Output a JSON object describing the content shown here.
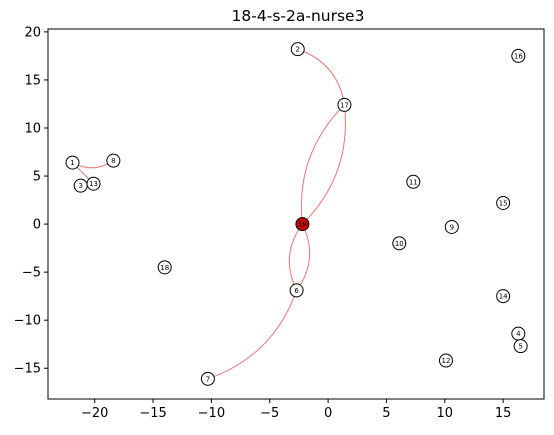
{
  "chart_data": {
    "type": "scatter",
    "title": "18-4-s-2a-nurse3",
    "xlabel": "",
    "ylabel": "",
    "xlim": [
      -24,
      18.5
    ],
    "ylim": [
      -18.2,
      20.3
    ],
    "xticks": [
      -20,
      -15,
      -10,
      -5,
      0,
      5,
      10,
      15
    ],
    "yticks": [
      -15,
      -10,
      -5,
      0,
      5,
      10,
      15,
      20
    ],
    "grid": false,
    "nodes": [
      {
        "id": "1",
        "x": -21.9,
        "y": 6.4
      },
      {
        "id": "2",
        "x": -2.6,
        "y": 18.2
      },
      {
        "id": "3",
        "x": -21.2,
        "y": 4.0
      },
      {
        "id": "4",
        "x": 16.3,
        "y": -11.4
      },
      {
        "id": "5",
        "x": 16.5,
        "y": -12.7
      },
      {
        "id": "6",
        "x": -2.7,
        "y": -6.9
      },
      {
        "id": "7",
        "x": -10.3,
        "y": -16.1
      },
      {
        "id": "8",
        "x": -18.4,
        "y": 6.6
      },
      {
        "id": "9",
        "x": 10.6,
        "y": -0.3
      },
      {
        "id": "10",
        "x": 6.1,
        "y": -2.0
      },
      {
        "id": "11",
        "x": 7.3,
        "y": 4.4
      },
      {
        "id": "12",
        "x": 10.1,
        "y": -14.2
      },
      {
        "id": "13",
        "x": -20.1,
        "y": 4.2
      },
      {
        "id": "14",
        "x": 15.0,
        "y": -7.5
      },
      {
        "id": "15",
        "x": 15.0,
        "y": 2.2
      },
      {
        "id": "16",
        "x": 16.3,
        "y": 17.5
      },
      {
        "id": "17",
        "x": 1.4,
        "y": 12.4
      },
      {
        "id": "18",
        "x": -14.0,
        "y": -4.5
      },
      {
        "id": "19",
        "x": -2.2,
        "y": 0.0,
        "highlight": true
      }
    ],
    "edges": [
      {
        "from": "1",
        "to": "8",
        "bend": 0.15
      },
      {
        "from": "1",
        "to": "13",
        "bend": 0.0
      },
      {
        "from": "2",
        "to": "17",
        "bend": -0.15
      },
      {
        "from": "17",
        "to": "19",
        "bend": 0.12
      },
      {
        "from": "17",
        "to": "19",
        "bend": -0.12
      },
      {
        "from": "19",
        "to": "6",
        "bend": 0.15
      },
      {
        "from": "19",
        "to": "6",
        "bend": -0.15
      },
      {
        "from": "6",
        "to": "7",
        "bend": -0.12
      }
    ],
    "colors": {
      "edge": "#f08080",
      "node_fill": "#ffffff",
      "node_stroke": "#000000",
      "highlight_fill": "#cc0000"
    }
  }
}
